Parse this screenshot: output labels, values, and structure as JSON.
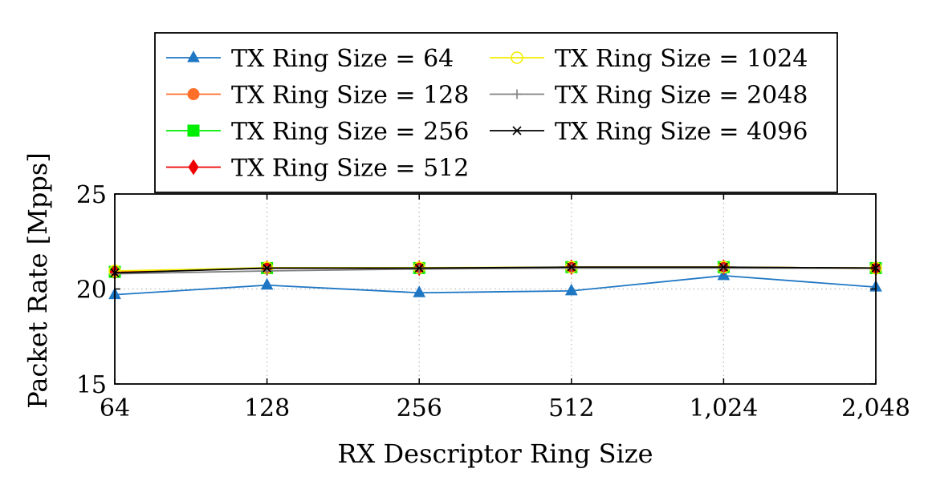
{
  "chart_data": {
    "type": "line",
    "title": "",
    "xlabel": "RX Descriptor Ring Size",
    "ylabel": "Packet Rate [Mpps]",
    "categories": [
      "64",
      "128",
      "256",
      "512",
      "1,024",
      "2,048"
    ],
    "yticks": [
      "15",
      "20",
      "25"
    ],
    "ylim": [
      15,
      25
    ],
    "grid": true,
    "legend_position": "top",
    "series": [
      {
        "name": "TX Ring Size = 64",
        "color": "#1f77c4",
        "marker": "triangle",
        "values": [
          19.7,
          20.2,
          19.8,
          19.9,
          20.7,
          20.1
        ]
      },
      {
        "name": "TX Ring Size = 128",
        "color": "#ff6f2a",
        "marker": "circle",
        "values": [
          20.9,
          21.1,
          21.1,
          21.15,
          21.15,
          21.1
        ]
      },
      {
        "name": "TX Ring Size = 256",
        "color": "#00ee00",
        "marker": "square",
        "values": [
          20.9,
          21.1,
          21.1,
          21.15,
          21.15,
          21.1
        ]
      },
      {
        "name": "TX Ring Size = 512",
        "color": "#ee0000",
        "marker": "diamond",
        "values": [
          20.9,
          21.1,
          21.1,
          21.15,
          21.15,
          21.1
        ]
      },
      {
        "name": "TX Ring Size = 1024",
        "color": "#f2ee00",
        "marker": "circle-open",
        "values": [
          20.95,
          21.12,
          21.12,
          21.15,
          21.15,
          21.1
        ]
      },
      {
        "name": "TX Ring Size = 2048",
        "color": "#808080",
        "marker": "plus",
        "values": [
          20.8,
          20.95,
          21.05,
          21.1,
          21.1,
          21.1
        ]
      },
      {
        "name": "TX Ring Size = 4096",
        "color": "#000000",
        "marker": "cross",
        "values": [
          20.85,
          21.1,
          21.1,
          21.15,
          21.15,
          21.1
        ]
      }
    ]
  }
}
